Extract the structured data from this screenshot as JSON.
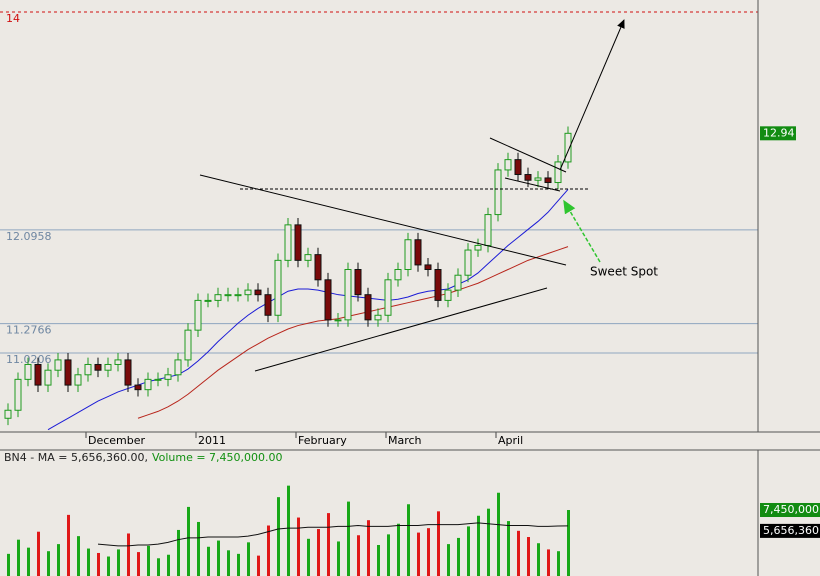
{
  "chart_data": [
    {
      "type": "candlestick",
      "categories": [
        null,
        null,
        null,
        null,
        null,
        null,
        null,
        null,
        "December",
        null,
        null,
        null,
        null,
        null,
        null,
        null,
        null,
        null,
        null,
        "2011",
        null,
        null,
        null,
        null,
        null,
        null,
        null,
        null,
        null,
        "February",
        null,
        null,
        null,
        null,
        null,
        null,
        null,
        null,
        "March",
        null,
        null,
        null,
        null,
        null,
        null,
        null,
        null,
        null,
        null,
        "April",
        null,
        null,
        null,
        null,
        null,
        null,
        null
      ],
      "open": [
        10.45,
        10.52,
        10.79,
        10.92,
        10.74,
        10.87,
        10.96,
        10.74,
        10.83,
        10.92,
        10.87,
        10.92,
        10.96,
        10.74,
        10.7,
        10.79,
        10.79,
        10.83,
        10.96,
        11.22,
        11.48,
        11.48,
        11.53,
        11.53,
        11.53,
        11.57,
        11.53,
        11.35,
        11.83,
        12.14,
        11.83,
        11.88,
        11.66,
        11.31,
        11.31,
        11.75,
        11.53,
        11.31,
        11.35,
        11.66,
        11.75,
        12.01,
        11.79,
        11.75,
        11.48,
        11.57,
        11.7,
        11.92,
        11.96,
        12.23,
        12.62,
        12.71,
        12.58,
        12.53,
        12.55,
        12.51,
        12.69
      ],
      "high": [
        10.58,
        10.85,
        10.98,
        10.98,
        10.93,
        11.02,
        11.02,
        10.89,
        10.98,
        10.98,
        10.98,
        11.02,
        11.02,
        10.8,
        10.85,
        10.85,
        10.89,
        11.02,
        11.28,
        11.54,
        11.54,
        11.59,
        11.59,
        11.59,
        11.63,
        11.63,
        11.59,
        11.89,
        12.2,
        12.2,
        11.94,
        11.94,
        11.72,
        11.37,
        11.81,
        11.81,
        11.59,
        11.41,
        11.72,
        11.81,
        12.07,
        12.07,
        11.85,
        11.81,
        11.63,
        11.76,
        11.98,
        12.02,
        12.29,
        12.68,
        12.77,
        12.77,
        12.64,
        12.61,
        12.61,
        12.75,
        13.0
      ],
      "low": [
        10.39,
        10.46,
        10.73,
        10.68,
        10.68,
        10.81,
        10.68,
        10.68,
        10.77,
        10.81,
        10.81,
        10.86,
        10.68,
        10.64,
        10.64,
        10.73,
        10.73,
        10.77,
        10.9,
        11.16,
        11.42,
        11.42,
        11.47,
        11.47,
        11.47,
        11.47,
        11.29,
        11.29,
        11.77,
        11.77,
        11.77,
        11.6,
        11.25,
        11.25,
        11.25,
        11.47,
        11.25,
        11.25,
        11.29,
        11.6,
        11.69,
        11.73,
        11.69,
        11.42,
        11.42,
        11.51,
        11.64,
        11.86,
        11.9,
        12.17,
        12.56,
        12.52,
        12.47,
        12.47,
        12.45,
        12.45,
        12.63
      ],
      "close": [
        10.52,
        10.79,
        10.92,
        10.74,
        10.87,
        10.96,
        10.74,
        10.83,
        10.92,
        10.87,
        10.92,
        10.96,
        10.74,
        10.7,
        10.79,
        10.79,
        10.83,
        10.96,
        11.22,
        11.48,
        11.48,
        11.53,
        11.53,
        11.53,
        11.57,
        11.53,
        11.35,
        11.83,
        12.14,
        11.83,
        11.88,
        11.66,
        11.31,
        11.31,
        11.75,
        11.53,
        11.31,
        11.35,
        11.66,
        11.75,
        12.01,
        11.79,
        11.75,
        11.48,
        11.57,
        11.7,
        11.92,
        11.96,
        12.23,
        12.62,
        12.71,
        12.58,
        12.53,
        12.55,
        12.51,
        12.69,
        12.94
      ],
      "up_color": "#1f9a1f",
      "down_color": "#7a0a0a",
      "series": [
        {
          "color": "#1c1cd6",
          "values": [
            null,
            null,
            null,
            null,
            10.35,
            10.4,
            10.45,
            10.5,
            10.55,
            10.6,
            10.64,
            10.68,
            10.71,
            10.74,
            10.77,
            10.79,
            10.81,
            10.83,
            10.88,
            10.95,
            11.03,
            11.12,
            11.2,
            11.28,
            11.35,
            11.41,
            11.46,
            11.51,
            11.56,
            11.58,
            11.58,
            11.57,
            11.55,
            11.53,
            11.52,
            11.51,
            11.5,
            11.49,
            11.48,
            11.49,
            11.51,
            11.54,
            11.56,
            11.57,
            11.58,
            11.62,
            11.66,
            11.72,
            11.8,
            11.88,
            11.96,
            12.03,
            12.1,
            12.17,
            12.25,
            12.35,
            12.45
          ]
        },
        {
          "color": "#b8261c",
          "values": [
            null,
            null,
            null,
            null,
            null,
            null,
            null,
            null,
            null,
            null,
            null,
            null,
            null,
            10.45,
            10.48,
            10.51,
            10.55,
            10.6,
            10.66,
            10.73,
            10.8,
            10.87,
            10.93,
            10.99,
            11.05,
            11.1,
            11.15,
            11.19,
            11.23,
            11.26,
            11.28,
            11.3,
            11.31,
            11.32,
            11.34,
            11.36,
            11.38,
            11.4,
            11.42,
            11.44,
            11.46,
            11.48,
            11.5,
            11.52,
            11.54,
            11.57,
            11.6,
            11.63,
            11.67,
            11.71,
            11.75,
            11.79,
            11.83,
            11.86,
            11.89,
            11.92,
            11.95
          ]
        }
      ],
      "ylim": [
        10.33,
        14.105
      ],
      "yticks": [
        14,
        12.0958,
        11.2766,
        11.0206
      ],
      "tick_colors": [
        "#d01010",
        "#8fa6bf",
        "#8fa6bf",
        "#8fa6bf"
      ],
      "last_price": 12.94,
      "last_color": "#128c12",
      "annotation": "Sweet Spot"
    },
    {
      "type": "bar",
      "title": "BN4 - MA = 5,656,360.00,",
      "subtitle": "Volume = 7,450,000.00",
      "values": [
        2500000,
        4100000,
        3200000,
        5000000,
        2800000,
        3600000,
        6900000,
        4500000,
        3100000,
        2600000,
        2200000,
        3000000,
        4800000,
        2700000,
        3400000,
        2000000,
        2400000,
        5200000,
        7800000,
        6100000,
        3300000,
        4000000,
        2900000,
        2500000,
        3800000,
        2300000,
        5700000,
        8900000,
        10200000,
        6600000,
        4200000,
        5300000,
        7100000,
        3900000,
        8400000,
        4600000,
        6300000,
        3500000,
        4700000,
        5900000,
        8100000,
        4900000,
        5400000,
        7300000,
        3600000,
        4300000,
        5600000,
        6800000,
        7600000,
        9400000,
        6200000,
        5100000,
        4400000,
        3700000,
        3000000,
        2800000,
        7450000
      ],
      "up_color": "#18a818",
      "down_color": "#e01818",
      "ma": [
        null,
        null,
        null,
        null,
        null,
        null,
        null,
        null,
        null,
        3600000,
        3500000,
        3400000,
        3400000,
        3500000,
        3500000,
        3600000,
        3800000,
        4100000,
        4300000,
        4300000,
        4400000,
        4400000,
        4400000,
        4400000,
        4500000,
        4700000,
        5000000,
        5300000,
        5400000,
        5400000,
        5500000,
        5500000,
        5500000,
        5600000,
        5600000,
        5700000,
        5600000,
        5600000,
        5600000,
        5700000,
        5700000,
        5700000,
        5800000,
        5800000,
        5800000,
        5800000,
        5900000,
        6000000,
        5900000,
        5800000,
        5700000,
        5700000,
        5700000,
        5600000,
        5600000,
        5650000,
        5656360
      ],
      "ylim": [
        0,
        12870000
      ],
      "last_labels": [
        {
          "value": 7450000,
          "label": "7,450,000"
        },
        {
          "value": 5656360,
          "label": "5,656,360"
        }
      ],
      "label_colors": [
        "#128c12",
        "#000000"
      ]
    }
  ]
}
